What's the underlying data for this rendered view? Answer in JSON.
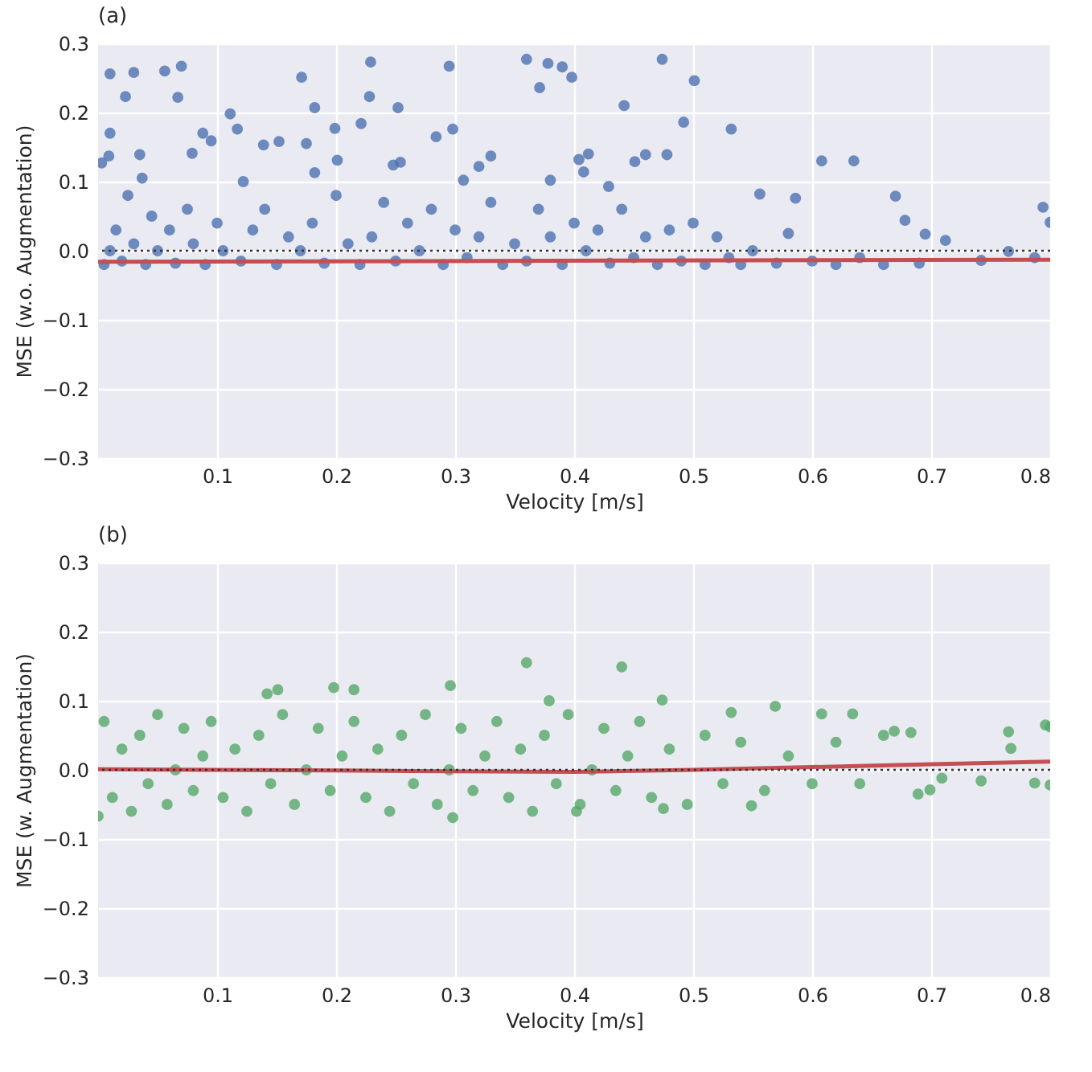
{
  "chart_data": [
    {
      "type": "scatter",
      "title": "(a)",
      "xlabel": "Velocity [m/s]",
      "ylabel": "MSE (w.o. Augmentation)",
      "xlim": [
        0,
        0.8
      ],
      "ylim": [
        -0.3,
        0.3
      ],
      "xticks": [
        0.1,
        0.2,
        0.3,
        0.4,
        0.5,
        0.6,
        0.7,
        0.8
      ],
      "yticks": [
        -0.3,
        -0.2,
        -0.1,
        {
          "value": 0,
          "label": "0.0"
        },
        0.1,
        0.2,
        0.3
      ],
      "grid": true,
      "series": [
        {
          "marker": "circle",
          "color": "#4c72b0",
          "x": [
            0.01,
            0.03,
            0.023,
            0.056,
            0.07,
            0.067,
            0.01,
            0.009,
            0.003,
            0.035,
            0.037,
            0.111,
            0.117,
            0.088,
            0.095,
            0.079,
            0.122,
            0.139,
            0.152,
            0.171,
            0.175,
            0.182,
            0.182,
            0.199,
            0.201,
            0.221,
            0.229,
            0.228,
            0.252,
            0.248,
            0.254,
            0.295,
            0.298,
            0.284,
            0.307,
            0.32,
            0.33,
            0.36,
            0.371,
            0.378,
            0.39,
            0.398,
            0.38,
            0.404,
            0.412,
            0.408,
            0.429,
            0.442,
            0.451,
            0.46,
            0.474,
            0.478,
            0.492,
            0.501,
            0.532,
            0.556,
            0.586,
            0.608,
            0.635,
            0.67,
            0.678,
            0.695,
            0.712,
            0.742,
            0.765,
            0.787,
            0.794,
            0.8,
            0.005,
            0.01,
            0.015,
            0.02,
            0.025,
            0.03,
            0.04,
            0.045,
            0.05,
            0.06,
            0.065,
            0.075,
            0.08,
            0.09,
            0.1,
            0.105,
            0.12,
            0.13,
            0.14,
            0.15,
            0.16,
            0.17,
            0.18,
            0.19,
            0.2,
            0.21,
            0.22,
            0.23,
            0.24,
            0.25,
            0.26,
            0.27,
            0.28,
            0.29,
            0.3,
            0.31,
            0.32,
            0.33,
            0.34,
            0.35,
            0.36,
            0.37,
            0.38,
            0.39,
            0.4,
            0.41,
            0.42,
            0.43,
            0.44,
            0.45,
            0.46,
            0.47,
            0.48,
            0.49,
            0.5,
            0.51,
            0.52,
            0.53,
            0.54,
            0.55,
            0.57,
            0.58,
            0.6,
            0.62,
            0.64,
            0.66,
            0.69
          ],
          "values": [
            0.256,
            0.258,
            0.223,
            0.26,
            0.267,
            0.222,
            0.17,
            0.137,
            0.127,
            0.139,
            0.105,
            0.198,
            0.176,
            0.17,
            0.159,
            0.141,
            0.1,
            0.153,
            0.158,
            0.251,
            0.155,
            0.207,
            0.113,
            0.177,
            0.131,
            0.184,
            0.273,
            0.223,
            0.207,
            0.124,
            0.128,
            0.267,
            0.176,
            0.165,
            0.102,
            0.122,
            0.137,
            0.277,
            0.236,
            0.271,
            0.266,
            0.251,
            0.102,
            0.132,
            0.14,
            0.114,
            0.093,
            0.21,
            0.129,
            0.139,
            0.277,
            0.139,
            0.186,
            0.246,
            0.176,
            0.082,
            0.076,
            0.13,
            0.13,
            0.079,
            0.044,
            0.024,
            0.015,
            -0.014,
            -0.001,
            -0.01,
            0.063,
            0.041,
            -0.02,
            0.0,
            0.03,
            -0.015,
            0.08,
            0.01,
            -0.02,
            0.05,
            0.0,
            0.03,
            -0.018,
            0.06,
            0.01,
            -0.02,
            0.04,
            0.0,
            -0.015,
            0.03,
            0.06,
            -0.02,
            0.02,
            0.0,
            0.04,
            -0.018,
            0.08,
            0.01,
            -0.02,
            0.02,
            0.07,
            -0.015,
            0.04,
            0.0,
            0.06,
            -0.02,
            0.03,
            -0.01,
            0.02,
            0.07,
            -0.02,
            0.01,
            -0.015,
            0.06,
            0.02,
            -0.02,
            0.04,
            0.0,
            0.03,
            -0.018,
            0.06,
            -0.01,
            0.02,
            -0.02,
            0.03,
            -0.015,
            0.04,
            -0.02,
            0.02,
            -0.01,
            -0.02,
            0.0,
            -0.018,
            0.025,
            -0.015,
            -0.02,
            -0.01,
            -0.02,
            -0.018
          ]
        },
        {
          "type": "line",
          "color": "#c44e52",
          "x": [
            0,
            0.8
          ],
          "values": [
            -0.016,
            -0.013
          ]
        }
      ],
      "ref_lines": [
        {
          "axis": "y",
          "value": 0,
          "color": "#333333",
          "line_style": "dotted"
        }
      ]
    },
    {
      "type": "scatter",
      "title": "(b)",
      "xlabel": "Velocity [m/s]",
      "ylabel": "MSE (w. Augmentation)",
      "xlim": [
        0,
        0.8
      ],
      "ylim": [
        -0.3,
        0.3
      ],
      "xticks": [
        0.1,
        0.2,
        0.3,
        0.4,
        0.5,
        0.6,
        0.7,
        0.8
      ],
      "yticks": [
        -0.3,
        -0.2,
        -0.1,
        {
          "value": 0,
          "label": "0.0"
        },
        0.1,
        0.2,
        0.3
      ],
      "grid": true,
      "series": [
        {
          "marker": "circle",
          "color": "#55a868",
          "x": [
            0.36,
            0.44,
            0.296,
            0.198,
            0.215,
            0.151,
            0.142,
            0.474,
            0.379,
            0.569,
            0.634,
            0.608,
            0.532,
            0.669,
            0.683,
            0.765,
            0.767,
            0.796,
            0.8,
            0.742,
            0.787,
            0.8,
            0.689,
            0.699,
            0.709,
            0.549,
            0.475,
            0.402,
            0.298,
            0.0,
            0.005,
            0.012,
            0.02,
            0.028,
            0.035,
            0.042,
            0.05,
            0.058,
            0.065,
            0.072,
            0.08,
            0.088,
            0.095,
            0.105,
            0.115,
            0.125,
            0.135,
            0.145,
            0.155,
            0.165,
            0.175,
            0.185,
            0.195,
            0.205,
            0.215,
            0.225,
            0.235,
            0.245,
            0.255,
            0.265,
            0.275,
            0.285,
            0.295,
            0.305,
            0.315,
            0.325,
            0.335,
            0.345,
            0.355,
            0.365,
            0.375,
            0.385,
            0.395,
            0.405,
            0.415,
            0.425,
            0.435,
            0.445,
            0.455,
            0.465,
            0.48,
            0.495,
            0.51,
            0.525,
            0.54,
            0.56,
            0.58,
            0.6,
            0.62,
            0.64,
            0.66
          ],
          "values": [
            0.155,
            0.149,
            0.122,
            0.119,
            0.116,
            0.116,
            0.11,
            0.101,
            0.1,
            0.092,
            0.081,
            0.081,
            0.083,
            0.056,
            0.054,
            0.055,
            0.031,
            0.065,
            0.062,
            -0.016,
            -0.019,
            -0.022,
            -0.035,
            -0.029,
            -0.012,
            -0.052,
            -0.056,
            -0.06,
            -0.069,
            -0.067,
            0.07,
            -0.04,
            0.03,
            -0.06,
            0.05,
            -0.02,
            0.08,
            -0.05,
            0.0,
            0.06,
            -0.03,
            0.02,
            0.07,
            -0.04,
            0.03,
            -0.06,
            0.05,
            -0.02,
            0.08,
            -0.05,
            0.0,
            0.06,
            -0.03,
            0.02,
            0.07,
            -0.04,
            0.03,
            -0.06,
            0.05,
            -0.02,
            0.08,
            -0.05,
            0.0,
            0.06,
            -0.03,
            0.02,
            0.07,
            -0.04,
            0.03,
            -0.06,
            0.05,
            -0.02,
            0.08,
            -0.05,
            0.0,
            0.06,
            -0.03,
            0.02,
            0.07,
            -0.04,
            0.03,
            -0.05,
            0.05,
            -0.02,
            0.04,
            -0.03,
            0.02,
            -0.02,
            0.04,
            -0.02,
            0.05
          ]
        },
        {
          "type": "line",
          "color": "#c44e52",
          "x": [
            0,
            0.2,
            0.4,
            0.5,
            0.6,
            0.7,
            0.8
          ],
          "values": [
            0.001,
            -0.001,
            -0.003,
            0.0,
            0.004,
            0.008,
            0.012
          ]
        }
      ],
      "ref_lines": [
        {
          "axis": "y",
          "value": 0,
          "color": "#333333",
          "line_style": "dotted"
        }
      ]
    }
  ]
}
